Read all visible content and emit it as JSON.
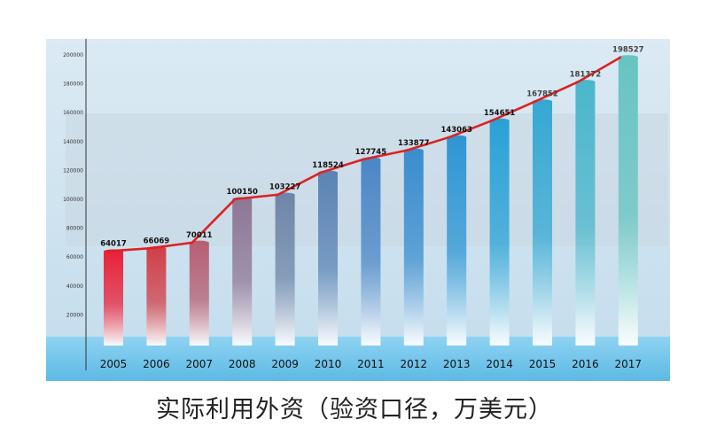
{
  "caption": "实际利用外资（验资口径，万美元）",
  "chart_data": {
    "type": "bar",
    "categories": [
      "2005",
      "2006",
      "2007",
      "2008",
      "2009",
      "2010",
      "2011",
      "2012",
      "2013",
      "2014",
      "2015",
      "2016",
      "2017"
    ],
    "values": [
      64017,
      66069,
      70011,
      100150,
      103227,
      118524,
      127745,
      133877,
      143063,
      154651,
      167852,
      181372,
      198527
    ],
    "data_labels": [
      "64017",
      "66069",
      "70011",
      "100150",
      "103227",
      "118524",
      "127745",
      "133877",
      "143063",
      "154651",
      "167852",
      "181372",
      "198527"
    ],
    "yticks": [
      "200000",
      "180000",
      "160000",
      "140000",
      "120000",
      "100000",
      "80000",
      "60000",
      "40000",
      "20000"
    ],
    "ylim": [
      0,
      200000
    ],
    "overlay_line": true,
    "grid": false,
    "colors": {
      "line": "#dd2222",
      "axis": "#333333",
      "bar_gradient": [
        "#e8223a",
        "#d04048",
        "#b75f73",
        "#8e7796",
        "#6f86a8",
        "#5b84b5",
        "#4b87c6",
        "#3a8dce",
        "#2e96d4",
        "#2aa2d6",
        "#35a8d2",
        "#4ab6cc",
        "#66c4c1"
      ],
      "background_top": "#cfe3f0",
      "background_bottom": "#b8d8ea",
      "band": "#6fc3e8"
    }
  }
}
